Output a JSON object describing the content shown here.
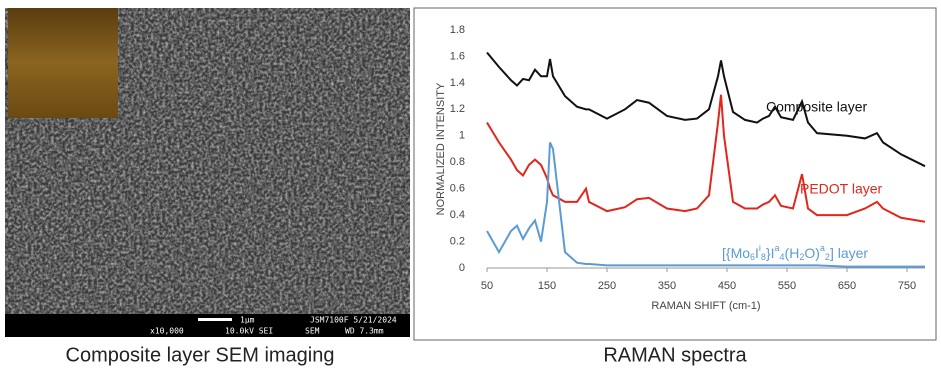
{
  "sem": {
    "caption": "Composite layer SEM imaging",
    "info": {
      "scale": "1μm",
      "instrument": "JSM7100F 5/21/2024",
      "magnification": "x10,000",
      "voltage": "10.0kV SEI",
      "mode": "SEM",
      "wd": "WD 7.3mm"
    }
  },
  "chart_data": {
    "type": "line",
    "caption": "RAMAN spectra",
    "x_label": "RAMAN SHIFT (cm-1)",
    "y_label": "NORMALIZED INTENSITY",
    "x": [
      50,
      70,
      90,
      100,
      110,
      120,
      130,
      140,
      150,
      155,
      160,
      180,
      200,
      215,
      220,
      250,
      280,
      300,
      320,
      350,
      380,
      400,
      420,
      435,
      440,
      445,
      460,
      480,
      500,
      510,
      520,
      530,
      540,
      560,
      575,
      585,
      600,
      650,
      680,
      700,
      710,
      740,
      780
    ],
    "xlim": [
      50,
      780
    ],
    "xticks": [
      50,
      150,
      250,
      350,
      450,
      550,
      650,
      750
    ],
    "ylim": [
      0,
      1.8
    ],
    "yticks": [
      0,
      0.2,
      0.4,
      0.6,
      0.8,
      1,
      1.2,
      1.4,
      1.6,
      1.8
    ],
    "series": [
      {
        "name": "Composite layer",
        "color": "#111111",
        "values": [
          1.63,
          1.52,
          1.42,
          1.38,
          1.43,
          1.42,
          1.5,
          1.45,
          1.45,
          1.58,
          1.45,
          1.3,
          1.22,
          1.2,
          1.2,
          1.13,
          1.2,
          1.27,
          1.25,
          1.15,
          1.12,
          1.13,
          1.2,
          1.45,
          1.57,
          1.45,
          1.18,
          1.12,
          1.1,
          1.13,
          1.15,
          1.22,
          1.14,
          1.12,
          1.26,
          1.1,
          1.02,
          1.0,
          0.98,
          1.02,
          0.95,
          0.86,
          0.77
        ]
      },
      {
        "name": "PEDOT layer",
        "color": "#e3261a",
        "values": [
          1.1,
          0.95,
          0.82,
          0.74,
          0.7,
          0.78,
          0.82,
          0.78,
          0.68,
          0.6,
          0.55,
          0.5,
          0.5,
          0.6,
          0.5,
          0.43,
          0.46,
          0.52,
          0.53,
          0.45,
          0.43,
          0.45,
          0.55,
          1.1,
          1.31,
          1.0,
          0.5,
          0.45,
          0.45,
          0.48,
          0.5,
          0.55,
          0.47,
          0.45,
          0.71,
          0.45,
          0.4,
          0.4,
          0.45,
          0.5,
          0.45,
          0.38,
          0.35
        ]
      },
      {
        "name": [
          "[{Mo",
          "6",
          "I",
          "i",
          "8",
          "}I",
          "a",
          "4",
          "(H",
          "2",
          "O)",
          "a",
          "2",
          "] layer"
        ],
        "color": "#5b9bd5",
        "values": [
          0.28,
          0.12,
          0.28,
          0.32,
          0.22,
          0.3,
          0.36,
          0.2,
          0.5,
          0.95,
          0.9,
          0.12,
          0.04,
          0.03,
          0.03,
          0.02,
          0.02,
          0.02,
          0.02,
          0.02,
          0.02,
          0.02,
          0.02,
          0.02,
          0.02,
          0.02,
          0.02,
          0.02,
          0.02,
          0.02,
          0.02,
          0.02,
          0.02,
          0.02,
          0.02,
          0.02,
          0.02,
          0.01,
          0.01,
          0.01,
          0.01,
          0.01,
          0.01
        ]
      }
    ]
  }
}
